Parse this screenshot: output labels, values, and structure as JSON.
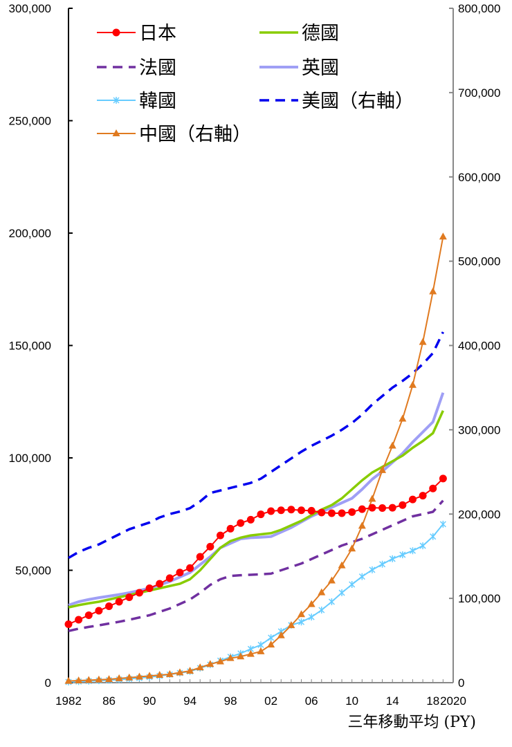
{
  "chart_data": {
    "type": "line",
    "title": "",
    "xlabel": "三年移動平均 (PY)",
    "x": [
      1982,
      1983,
      1984,
      1985,
      1986,
      1987,
      1988,
      1989,
      1990,
      1991,
      1992,
      1993,
      1994,
      1995,
      1996,
      1997,
      1998,
      1999,
      2000,
      2001,
      2002,
      2003,
      2004,
      2005,
      2006,
      2007,
      2008,
      2009,
      2010,
      2011,
      2012,
      2013,
      2014,
      2015,
      2016,
      2017,
      2018,
      2019
    ],
    "xlim": [
      1982,
      2020
    ],
    "x_tick_labels": [
      {
        "value": 1982,
        "label": "1982"
      },
      {
        "value": 1986,
        "label": "86"
      },
      {
        "value": 1990,
        "label": "90"
      },
      {
        "value": 1994,
        "label": "94"
      },
      {
        "value": 1998,
        "label": "98"
      },
      {
        "value": 2002,
        "label": "02"
      },
      {
        "value": 2006,
        "label": "06"
      },
      {
        "value": 2010,
        "label": "10"
      },
      {
        "value": 2014,
        "label": "14"
      },
      {
        "value": 2018,
        "label": "18"
      },
      {
        "value": 2020,
        "label": "2020"
      }
    ],
    "y_left": {
      "lim": [
        0,
        300000
      ],
      "ticks": [
        "0",
        "50,000",
        "100,000",
        "150,000",
        "200,000",
        "250,000",
        "300,000"
      ]
    },
    "y_right": {
      "lim": [
        0,
        800000
      ],
      "ticks": [
        "0",
        "100,000",
        "200,000",
        "300,000",
        "400,000",
        "500,000",
        "600,000",
        "700,000",
        "800,000"
      ]
    },
    "grid": false,
    "legend_placement": "top-left",
    "series": [
      {
        "name": "日本",
        "axis": "left",
        "color": "#ff0000",
        "style": "solid",
        "marker": "circle",
        "values": [
          26000,
          28000,
          30000,
          32000,
          34000,
          36000,
          38000,
          40000,
          42000,
          44000,
          46500,
          49000,
          51000,
          56000,
          60500,
          65500,
          68500,
          71000,
          72500,
          74900,
          76300,
          76700,
          77000,
          76700,
          76500,
          75700,
          75400,
          75400,
          75900,
          77200,
          77800,
          77700,
          77800,
          79000,
          81500,
          83200,
          86400,
          90800
        ]
      },
      {
        "name": "德國",
        "axis": "left",
        "color": "#88cc00",
        "style": "solid",
        "marker": "none",
        "values": [
          33500,
          34500,
          35300,
          36000,
          37000,
          38000,
          39000,
          40000,
          41000,
          42000,
          43000,
          44000,
          46000,
          50000,
          55000,
          60000,
          63000,
          64500,
          65500,
          66000,
          66500,
          68000,
          70000,
          72000,
          74500,
          77000,
          79000,
          82000,
          86000,
          90000,
          93500,
          96000,
          98500,
          101000,
          104500,
          107500,
          111000,
          121000
        ]
      },
      {
        "name": "法國",
        "axis": "left",
        "color": "#7030a0",
        "style": "dashed",
        "marker": "none",
        "values": [
          23000,
          24000,
          24800,
          25500,
          26300,
          27100,
          28000,
          29000,
          30000,
          31500,
          33000,
          35000,
          37000,
          40000,
          43500,
          46000,
          47500,
          47800,
          48000,
          48200,
          48500,
          50000,
          51500,
          53000,
          55000,
          57000,
          59000,
          61000,
          62500,
          64000,
          66000,
          68000,
          70000,
          72000,
          74000,
          75000,
          76000,
          81000
        ]
      },
      {
        "name": "英國",
        "axis": "left",
        "color": "#9f9ff5",
        "style": "solid",
        "marker": "none",
        "values": [
          34500,
          36000,
          37000,
          37800,
          38500,
          39200,
          40000,
          41000,
          42000,
          43500,
          45000,
          47000,
          49000,
          52500,
          56000,
          60000,
          62000,
          64000,
          64500,
          64700,
          65000,
          67000,
          69000,
          71500,
          74000,
          76000,
          78000,
          80000,
          82000,
          86000,
          90500,
          94000,
          98000,
          102000,
          107000,
          111500,
          116000,
          129000
        ]
      },
      {
        "name": "韓國",
        "axis": "left",
        "color": "#66ccff",
        "style": "solid",
        "marker": "asterisk",
        "values": [
          300,
          500,
          700,
          900,
          1100,
          1400,
          1700,
          2100,
          2500,
          3000,
          3600,
          4300,
          5000,
          6500,
          8000,
          9800,
          11500,
          13000,
          15000,
          16800,
          20000,
          22800,
          25600,
          27000,
          29200,
          32300,
          36000,
          40000,
          43700,
          47200,
          50200,
          52700,
          55100,
          56900,
          58700,
          60900,
          65000,
          70500
        ]
      },
      {
        "name": "美國（右軸）",
        "axis": "right",
        "color": "#0000ee",
        "style": "dashed",
        "marker": "none",
        "values": [
          148000,
          155000,
          160000,
          164000,
          170000,
          176000,
          182000,
          186000,
          190000,
          196000,
          200000,
          203000,
          207000,
          215000,
          225000,
          228000,
          231000,
          234000,
          237000,
          242000,
          250000,
          258000,
          266000,
          274000,
          281000,
          287000,
          293000,
          300000,
          308000,
          318000,
          330000,
          340000,
          350000,
          358000,
          367000,
          378000,
          391000,
          416000
        ]
      },
      {
        "name": "中國（右軸）",
        "axis": "right",
        "color": "#e07a20",
        "style": "solid",
        "marker": "triangle",
        "values": [
          2000,
          2500,
          3000,
          3500,
          4000,
          5000,
          6000,
          7000,
          8000,
          9000,
          10000,
          12000,
          14000,
          18000,
          22000,
          25000,
          29000,
          31000,
          34000,
          37000,
          45000,
          56000,
          68000,
          81000,
          93000,
          107000,
          121000,
          139000,
          159000,
          186000,
          218000,
          252000,
          281000,
          313000,
          353000,
          404000,
          464000,
          529000
        ]
      }
    ]
  }
}
